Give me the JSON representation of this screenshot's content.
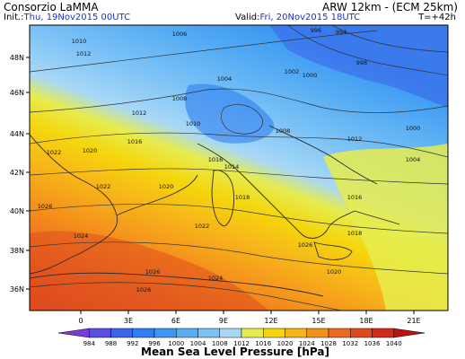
{
  "header": {
    "org": "Consorzio LaMMA",
    "model": "ARW 12km - (ECM 25km)",
    "init_label": "Init.:",
    "init_value": "Thu, 19Nov2015 00UTC",
    "valid_label": "Valid:",
    "valid_value": "Fri, 20Nov2015 18UTC",
    "lead": "T=+42h"
  },
  "map": {
    "lon_ticks": [
      "0",
      "3E",
      "6E",
      "9E",
      "12E",
      "15E",
      "18E",
      "21E"
    ],
    "lat_ticks": [
      "48N",
      "46N",
      "44N",
      "42N",
      "40N",
      "38N",
      "36N"
    ],
    "isobar_labels": [
      "994",
      "996",
      "998",
      "1000",
      "1002",
      "1004",
      "1006",
      "1008",
      "1010",
      "1012",
      "1014",
      "1016",
      "1018",
      "1020",
      "1022",
      "1024",
      "1026"
    ],
    "colors": {
      "land_outline": "#2a2a2a",
      "isobar": "#333333"
    }
  },
  "colorbar": {
    "title": "Mean Sea Level Pressure [hPa]",
    "labels": [
      "984",
      "988",
      "992",
      "996",
      "1000",
      "1004",
      "1008",
      "1012",
      "1016",
      "1020",
      "1024",
      "1028",
      "1032",
      "1036",
      "1040"
    ],
    "colors": [
      "#7d3bd6",
      "#5a4fe0",
      "#3d63ea",
      "#2f7ff0",
      "#3b98f2",
      "#58aef4",
      "#7cc2f6",
      "#a8d8f6",
      "#e6ec4e",
      "#f5d60c",
      "#f7b51a",
      "#f48f1c",
      "#ea6a1e",
      "#dd4a1e",
      "#cf2a1c",
      "#b81414"
    ]
  }
}
